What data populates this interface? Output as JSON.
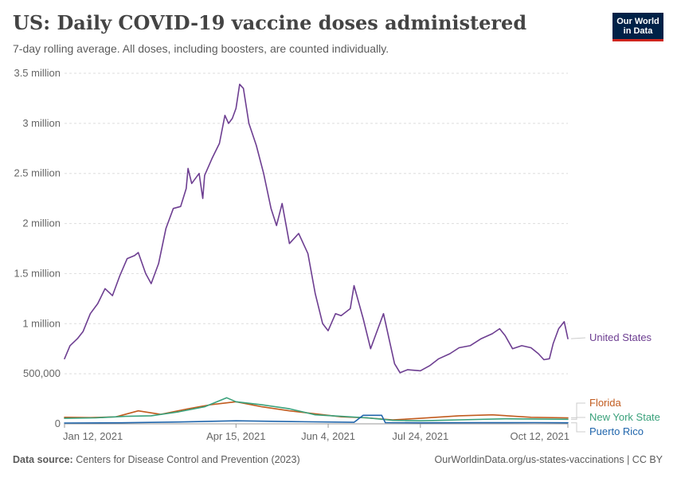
{
  "header": {
    "title": "US: Daily COVID-19 vaccine doses administered",
    "subtitle": "7-day rolling average. All doses, including boosters, are counted individually."
  },
  "logo": {
    "line1": "Our World",
    "line2": "in Data"
  },
  "footer": {
    "source_label": "Data source:",
    "source_text": "Centers for Disease Control and Prevention (2023)",
    "link": "OurWorldinData.org/us-states-vaccinations | CC BY"
  },
  "chart_data": {
    "type": "line",
    "title": "US: Daily COVID-19 vaccine doses administered",
    "subtitle": "7-day rolling average. All doses, including boosters, are counted individually.",
    "xlim": [
      "2021-01-12",
      "2021-10-12"
    ],
    "ylim": [
      0,
      3500000
    ],
    "yticks": [
      0,
      500000,
      1000000,
      1500000,
      2000000,
      2500000,
      3000000,
      3500000
    ],
    "ytick_labels": [
      "0",
      "500,000",
      "1 million",
      "1.5 million",
      "2 million",
      "2.5 million",
      "3 million",
      "3.5 million"
    ],
    "xticks": [
      "2021-01-12",
      "2021-04-15",
      "2021-06-04",
      "2021-07-24",
      "2021-10-12"
    ],
    "xtick_labels": [
      "Jan 12, 2021",
      "Apr 15, 2021",
      "Jun 4, 2021",
      "Jul 24, 2021",
      "Oct 12, 2021"
    ],
    "grid": "horizontal-dashed",
    "legend": "direct-labels-right",
    "series": [
      {
        "name": "United States",
        "color": "#6d3e91",
        "points": [
          [
            "2021-01-12",
            650000
          ],
          [
            "2021-01-15",
            780000
          ],
          [
            "2021-01-19",
            850000
          ],
          [
            "2021-01-22",
            920000
          ],
          [
            "2021-01-26",
            1100000
          ],
          [
            "2021-01-30",
            1200000
          ],
          [
            "2021-02-03",
            1350000
          ],
          [
            "2021-02-07",
            1280000
          ],
          [
            "2021-02-11",
            1480000
          ],
          [
            "2021-02-15",
            1650000
          ],
          [
            "2021-02-19",
            1680000
          ],
          [
            "2021-02-21",
            1710000
          ],
          [
            "2021-02-25",
            1500000
          ],
          [
            "2021-02-28",
            1400000
          ],
          [
            "2021-03-04",
            1600000
          ],
          [
            "2021-03-08",
            1950000
          ],
          [
            "2021-03-12",
            2150000
          ],
          [
            "2021-03-16",
            2170000
          ],
          [
            "2021-03-19",
            2350000
          ],
          [
            "2021-03-20",
            2550000
          ],
          [
            "2021-03-22",
            2400000
          ],
          [
            "2021-03-26",
            2500000
          ],
          [
            "2021-03-28",
            2250000
          ],
          [
            "2021-03-29",
            2480000
          ],
          [
            "2021-04-02",
            2650000
          ],
          [
            "2021-04-06",
            2800000
          ],
          [
            "2021-04-09",
            3080000
          ],
          [
            "2021-04-11",
            3000000
          ],
          [
            "2021-04-13",
            3050000
          ],
          [
            "2021-04-15",
            3150000
          ],
          [
            "2021-04-17",
            3390000
          ],
          [
            "2021-04-19",
            3350000
          ],
          [
            "2021-04-22",
            3000000
          ],
          [
            "2021-04-26",
            2780000
          ],
          [
            "2021-04-30",
            2500000
          ],
          [
            "2021-05-04",
            2150000
          ],
          [
            "2021-05-07",
            1980000
          ],
          [
            "2021-05-10",
            2200000
          ],
          [
            "2021-05-14",
            1800000
          ],
          [
            "2021-05-19",
            1900000
          ],
          [
            "2021-05-24",
            1700000
          ],
          [
            "2021-05-28",
            1300000
          ],
          [
            "2021-06-01",
            1000000
          ],
          [
            "2021-06-04",
            930000
          ],
          [
            "2021-06-08",
            1100000
          ],
          [
            "2021-06-11",
            1080000
          ],
          [
            "2021-06-16",
            1150000
          ],
          [
            "2021-06-18",
            1380000
          ],
          [
            "2021-06-23",
            1050000
          ],
          [
            "2021-06-27",
            750000
          ],
          [
            "2021-06-30",
            900000
          ],
          [
            "2021-07-04",
            1100000
          ],
          [
            "2021-07-07",
            850000
          ],
          [
            "2021-07-10",
            600000
          ],
          [
            "2021-07-13",
            510000
          ],
          [
            "2021-07-17",
            540000
          ],
          [
            "2021-07-24",
            530000
          ],
          [
            "2021-07-29",
            580000
          ],
          [
            "2021-08-03",
            650000
          ],
          [
            "2021-08-09",
            700000
          ],
          [
            "2021-08-14",
            760000
          ],
          [
            "2021-08-20",
            780000
          ],
          [
            "2021-08-26",
            850000
          ],
          [
            "2021-09-01",
            900000
          ],
          [
            "2021-09-05",
            950000
          ],
          [
            "2021-09-08",
            880000
          ],
          [
            "2021-09-12",
            750000
          ],
          [
            "2021-09-17",
            780000
          ],
          [
            "2021-09-22",
            760000
          ],
          [
            "2021-09-26",
            700000
          ],
          [
            "2021-09-29",
            640000
          ],
          [
            "2021-10-02",
            650000
          ],
          [
            "2021-10-04",
            800000
          ],
          [
            "2021-10-07",
            950000
          ],
          [
            "2021-10-10",
            1020000
          ],
          [
            "2021-10-12",
            850000
          ]
        ]
      },
      {
        "name": "Florida",
        "color": "#c15b1e",
        "points": [
          [
            "2021-01-12",
            65000
          ],
          [
            "2021-01-26",
            62000
          ],
          [
            "2021-02-09",
            70000
          ],
          [
            "2021-02-21",
            130000
          ],
          [
            "2021-03-05",
            95000
          ],
          [
            "2021-03-20",
            150000
          ],
          [
            "2021-04-01",
            190000
          ],
          [
            "2021-04-15",
            220000
          ],
          [
            "2021-04-29",
            170000
          ],
          [
            "2021-05-14",
            130000
          ],
          [
            "2021-05-28",
            100000
          ],
          [
            "2021-06-11",
            70000
          ],
          [
            "2021-06-25",
            60000
          ],
          [
            "2021-07-09",
            40000
          ],
          [
            "2021-07-24",
            55000
          ],
          [
            "2021-08-14",
            80000
          ],
          [
            "2021-09-01",
            90000
          ],
          [
            "2021-09-22",
            65000
          ],
          [
            "2021-10-12",
            60000
          ]
        ]
      },
      {
        "name": "New York State",
        "color": "#3aa17b",
        "points": [
          [
            "2021-01-12",
            55000
          ],
          [
            "2021-01-29",
            60000
          ],
          [
            "2021-02-14",
            75000
          ],
          [
            "2021-02-28",
            80000
          ],
          [
            "2021-03-15",
            120000
          ],
          [
            "2021-03-29",
            170000
          ],
          [
            "2021-04-10",
            260000
          ],
          [
            "2021-04-15",
            220000
          ],
          [
            "2021-04-29",
            190000
          ],
          [
            "2021-05-14",
            150000
          ],
          [
            "2021-05-28",
            90000
          ],
          [
            "2021-06-11",
            75000
          ],
          [
            "2021-06-25",
            60000
          ],
          [
            "2021-07-09",
            35000
          ],
          [
            "2021-07-24",
            30000
          ],
          [
            "2021-08-14",
            40000
          ],
          [
            "2021-09-08",
            50000
          ],
          [
            "2021-10-12",
            45000
          ]
        ]
      },
      {
        "name": "Puerto Rico",
        "color": "#2166ac",
        "points": [
          [
            "2021-01-12",
            8000
          ],
          [
            "2021-02-12",
            10000
          ],
          [
            "2021-03-15",
            18000
          ],
          [
            "2021-04-15",
            30000
          ],
          [
            "2021-05-15",
            22000
          ],
          [
            "2021-06-18",
            15000
          ],
          [
            "2021-06-23",
            85000
          ],
          [
            "2021-07-03",
            85000
          ],
          [
            "2021-07-05",
            12000
          ],
          [
            "2021-07-24",
            10000
          ],
          [
            "2021-08-24",
            11000
          ],
          [
            "2021-09-24",
            12000
          ],
          [
            "2021-10-12",
            10000
          ]
        ]
      }
    ]
  }
}
